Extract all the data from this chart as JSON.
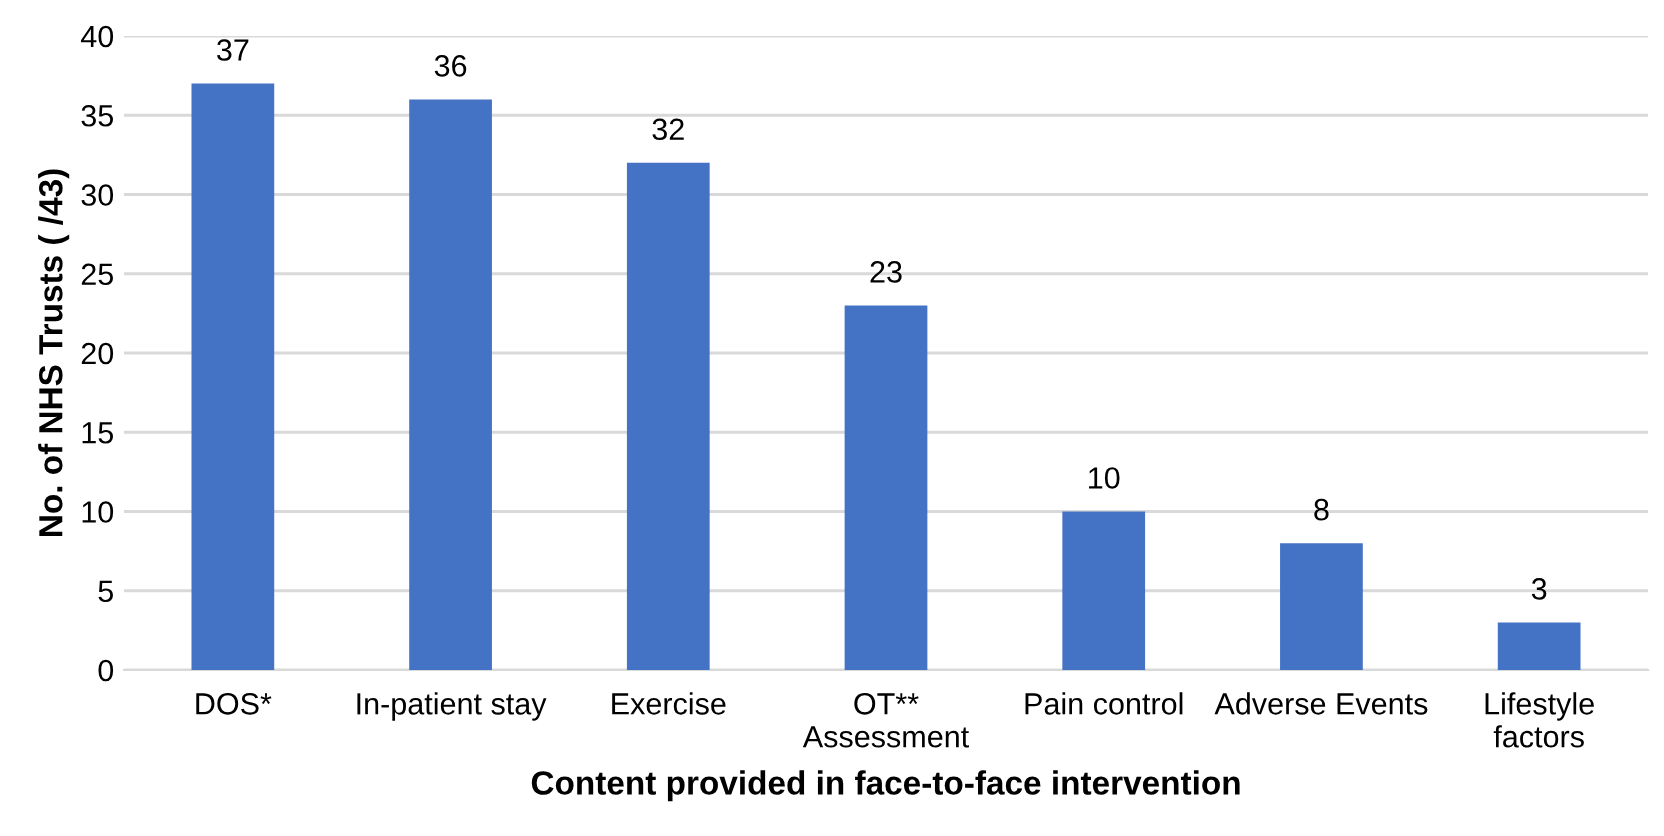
{
  "chart_data": {
    "type": "bar",
    "xlabel": "Content provided in face-to-face intervention",
    "ylabel": "No. of NHS Trusts ( /43)",
    "categories": [
      "DOS*",
      "In-patient stay",
      "Exercise",
      "OT**\nAssessment",
      "Pain control",
      "Adverse Events",
      "Lifestyle\nfactors"
    ],
    "values": [
      37,
      36,
      32,
      23,
      10,
      8,
      3
    ],
    "color": "#4472c4",
    "ylim": [
      0,
      40
    ],
    "yticks": [
      0,
      5,
      10,
      15,
      20,
      25,
      30,
      35,
      40
    ],
    "grid": "y",
    "data_labels": true
  }
}
